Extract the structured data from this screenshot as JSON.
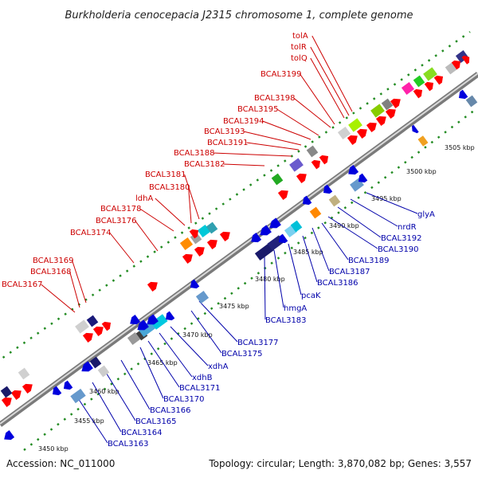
{
  "header": {
    "title": "Burkholderia cenocepacia J2315 chromosome 1, complete genome"
  },
  "footer": {
    "accession": "Accession: NC_011000",
    "summary": "Topology: circular; Length: 3,870,082 bp; Genes: 3,557"
  },
  "colors": {
    "forward_label": "#cc0000",
    "reverse_label": "#0000aa",
    "forward_gene": "#ff0000",
    "reverse_gene": "#0000dd",
    "backbone": "#999999",
    "dots": "#228b22"
  },
  "scale": {
    "ticks": [
      "3450 kbp",
      "3455 kbp",
      "3460 kbp",
      "3465 kbp",
      "3470 kbp",
      "3475 kbp",
      "3480 kbp",
      "3485 kbp",
      "3490 kbp",
      "3495 kbp",
      "3500 kbp",
      "3505 kbp"
    ]
  },
  "forward_labels": [
    "tolA",
    "tolR",
    "tolQ",
    "BCAL3199",
    "BCAL3198",
    "BCAL3195",
    "BCAL3194",
    "BCAL3193",
    "BCAL3191",
    "BCAL3188",
    "BCAL3182",
    "BCAL3181",
    "BCAL3180",
    "ldhA",
    "BCAL3178",
    "BCAL3176",
    "BCAL3174",
    "BCAL3169",
    "BCAL3168",
    "BCAL3167"
  ],
  "reverse_labels": [
    "glyA",
    "nrdR",
    "BCAL3192",
    "BCAL3190",
    "BCAL3189",
    "BCAL3187",
    "BCAL3186",
    "pcaK",
    "hmgA",
    "BCAL3183",
    "BCAL3177",
    "BCAL3175",
    "xdhA",
    "xdhB",
    "BCAL3171",
    "BCAL3170",
    "BCAL3166",
    "BCAL3165",
    "BCAL3164",
    "BCAL3163"
  ]
}
